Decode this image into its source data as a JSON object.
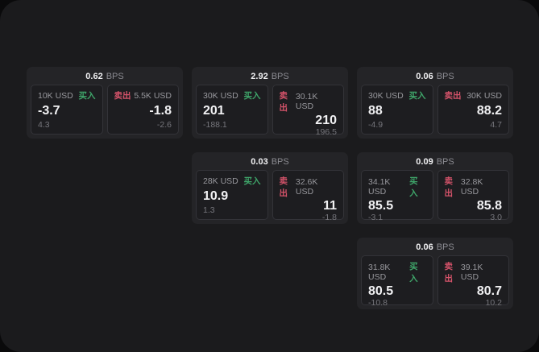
{
  "labels": {
    "bps": "BPS",
    "buy": "买入",
    "sell": "卖出"
  },
  "colors": {
    "buy": "#3fa66a",
    "sell": "#d5536a"
  },
  "cards": [
    {
      "bps": "0.62",
      "buy": {
        "amount": "10K USD",
        "value": "-3.7",
        "change": "4.3"
      },
      "sell": {
        "amount": "5.5K USD",
        "value": "-1.8",
        "change": "-2.6"
      }
    },
    {
      "bps": "2.92",
      "buy": {
        "amount": "30K USD",
        "value": "201",
        "change": "-188.1"
      },
      "sell": {
        "amount": "30.1K USD",
        "value": "210",
        "change": "196.5"
      }
    },
    {
      "bps": "0.06",
      "buy": {
        "amount": "30K USD",
        "value": "88",
        "change": "-4.9"
      },
      "sell": {
        "amount": "30K USD",
        "value": "88.2",
        "change": "4.7"
      }
    },
    {
      "bps": "0.03",
      "buy": {
        "amount": "28K USD",
        "value": "10.9",
        "change": "1.3"
      },
      "sell": {
        "amount": "32.6K USD",
        "value": "11",
        "change": "-1.8"
      }
    },
    {
      "bps": "0.09",
      "buy": {
        "amount": "34.1K USD",
        "value": "85.5",
        "change": "-3.1"
      },
      "sell": {
        "amount": "32.8K USD",
        "value": "85.8",
        "change": "3.0"
      }
    },
    {
      "bps": "0.06",
      "buy": {
        "amount": "31.8K USD",
        "value": "80.5",
        "change": "-10.8"
      },
      "sell": {
        "amount": "39.1K USD",
        "value": "80.7",
        "change": "10.2"
      }
    }
  ]
}
